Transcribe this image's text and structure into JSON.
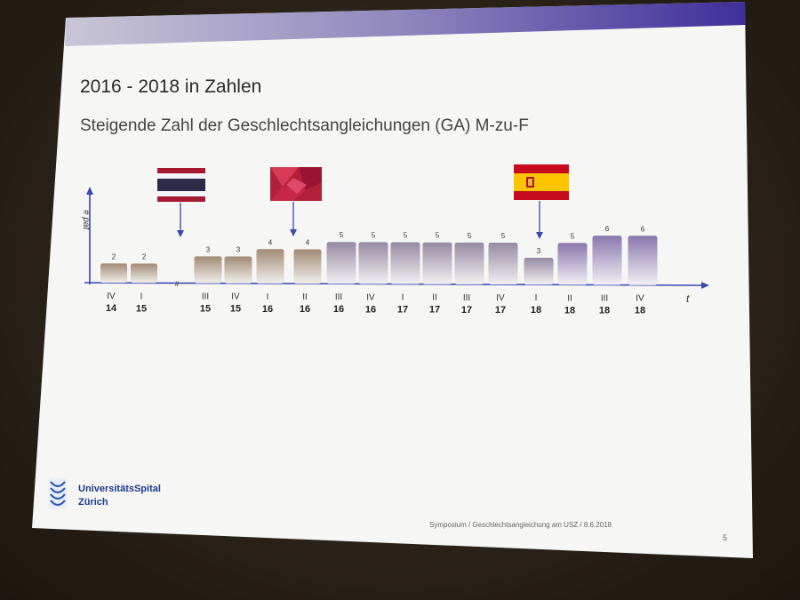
{
  "slide": {
    "title": "2016 - 2018 in Zahlen",
    "subtitle": "Steigende Zahl der Geschlechtsangleichungen (GA) M-zu-F",
    "footer": "Symposium  /  Geschlechtsangleichung am USZ  /  8.6.2018",
    "page_number": "5",
    "logo": {
      "line1": "UniversitätsSpital",
      "line2": "Zürich"
    }
  },
  "chart_data": {
    "type": "bar",
    "ylabel": "# pat",
    "xlabel": "t",
    "ylim": [
      0,
      6
    ],
    "grid": false,
    "categories": [
      {
        "q": "IV",
        "y": "14",
        "value": 2
      },
      {
        "q": "I",
        "y": "15",
        "value": 2
      },
      {
        "q": "III",
        "y": "15",
        "value": 3
      },
      {
        "q": "IV",
        "y": "15",
        "value": 3
      },
      {
        "q": "I",
        "y": "16",
        "value": 4
      },
      {
        "q": "II",
        "y": "16",
        "value": 4
      },
      {
        "q": "III",
        "y": "16",
        "value": 5
      },
      {
        "q": "IV",
        "y": "16",
        "value": 5
      },
      {
        "q": "I",
        "y": "17",
        "value": 5
      },
      {
        "q": "II",
        "y": "17",
        "value": 5
      },
      {
        "q": "III",
        "y": "17",
        "value": 5
      },
      {
        "q": "IV",
        "y": "17",
        "value": 5
      },
      {
        "q": "I",
        "y": "18",
        "value": 3
      },
      {
        "q": "II",
        "y": "18",
        "value": 5
      },
      {
        "q": "III",
        "y": "18",
        "value": 6
      },
      {
        "q": "IV",
        "y": "18",
        "value": 6
      }
    ],
    "annotations": [
      {
        "icon": "flag-thailand-icon"
      },
      {
        "icon": "flag-red-abstract-icon"
      },
      {
        "icon": "flag-spain-icon"
      }
    ],
    "colors": {
      "bar_early": "#a88f7a",
      "bar_mid": "#9a8ea0",
      "bar_late": "#8f7fa8",
      "axis": "#3a48b0"
    }
  }
}
